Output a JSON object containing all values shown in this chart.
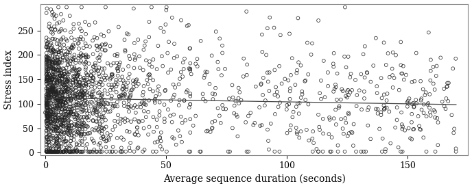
{
  "xlabel": "Average sequence duration (seconds)",
  "ylabel": "Stress index",
  "xlim": [
    -2,
    175
  ],
  "ylim": [
    -5,
    305
  ],
  "xticks": [
    0,
    50,
    100,
    150
  ],
  "yticks": [
    0,
    50,
    100,
    150,
    200,
    250
  ],
  "background_color": "#ffffff",
  "border_color": "#888888",
  "marker_facecolor": "none",
  "marker_edgecolor": "#222222",
  "marker_size": 3.5,
  "marker_lw": 0.5,
  "marker_style": "o",
  "line_color": "#444444",
  "line_intercept": 112.0,
  "line_slope": -0.08,
  "random_seed": 123,
  "n_points_dense": 1400,
  "n_points_sparse": 600,
  "xlabel_fontsize": 10,
  "ylabel_fontsize": 10,
  "tick_fontsize": 9
}
